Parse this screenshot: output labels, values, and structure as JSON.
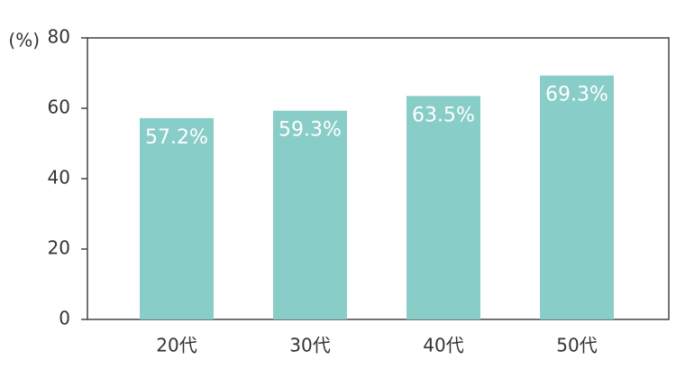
{
  "chart_data": {
    "type": "bar",
    "y_label": "(%)",
    "categories": [
      "20代",
      "30代",
      "40代",
      "50代"
    ],
    "values": [
      57.2,
      59.3,
      63.5,
      69.3
    ],
    "value_labels": [
      "57.2%",
      "59.3%",
      "63.5%",
      "69.3%"
    ],
    "color": "#88cdc8",
    "ylim": [
      0,
      80
    ],
    "yticks": [
      0,
      20,
      40,
      60,
      80
    ],
    "grid": false
  }
}
